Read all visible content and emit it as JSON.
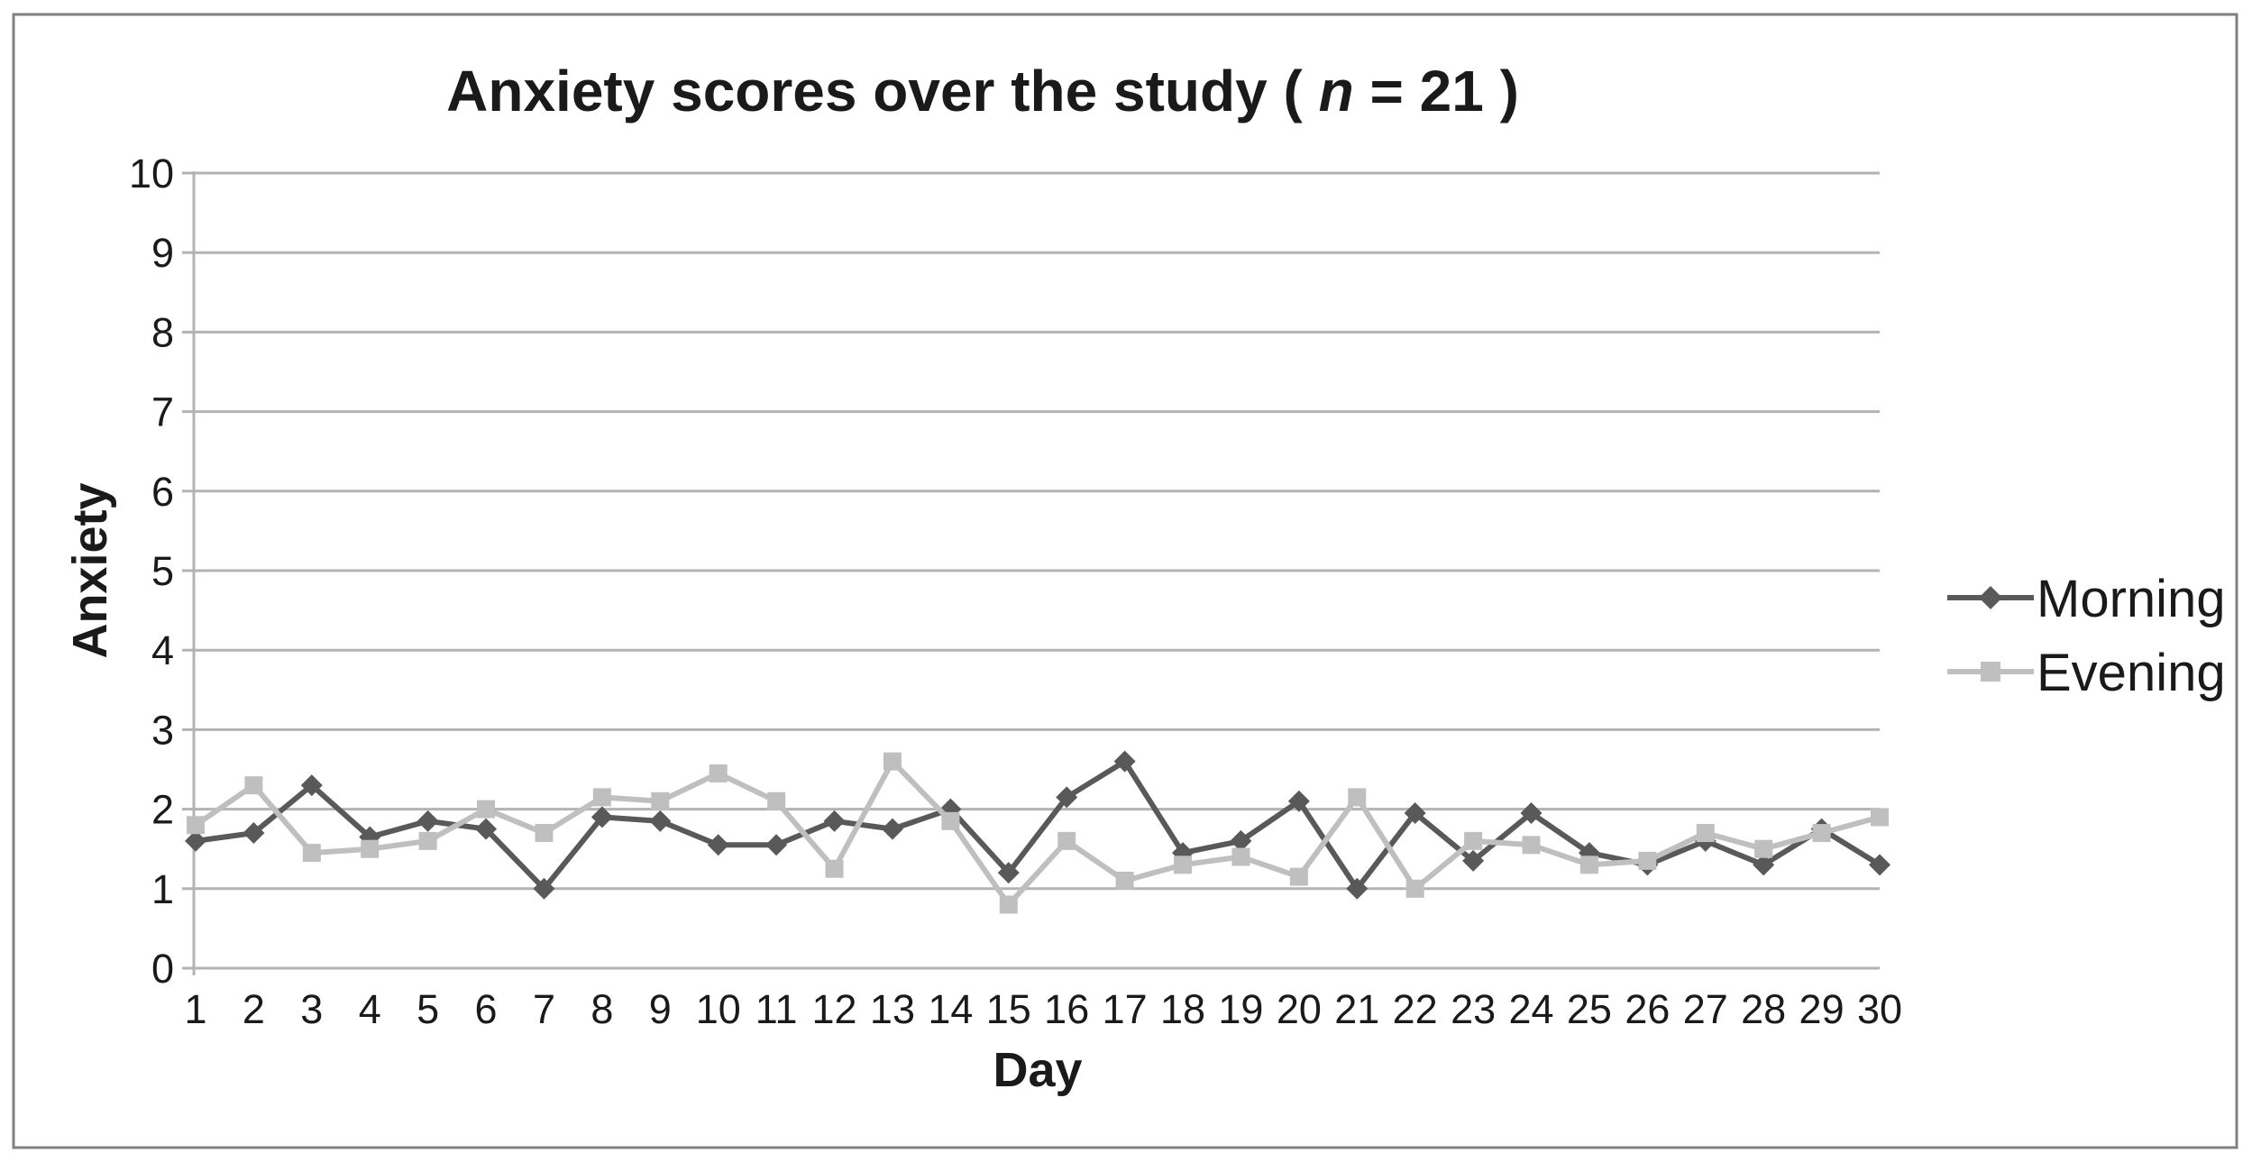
{
  "title": {
    "prefix": "Anxiety scores over the study ( ",
    "italic": "n",
    "suffix": " = 21 )"
  },
  "chart_data": {
    "type": "line",
    "categories": [
      "1",
      "2",
      "3",
      "4",
      "5",
      "6",
      "7",
      "8",
      "9",
      "10",
      "11",
      "12",
      "13",
      "14",
      "15",
      "16",
      "17",
      "18",
      "19",
      "20",
      "21",
      "22",
      "23",
      "24",
      "25",
      "26",
      "27",
      "28",
      "29",
      "30"
    ],
    "series": [
      {
        "name": "Morning",
        "color": "#595959",
        "marker": "diamond",
        "values": [
          1.6,
          1.7,
          2.3,
          1.65,
          1.85,
          1.75,
          1.0,
          1.9,
          1.85,
          1.55,
          1.55,
          1.85,
          1.75,
          2.0,
          1.2,
          2.15,
          2.6,
          1.45,
          1.6,
          2.1,
          1.0,
          1.95,
          1.35,
          1.95,
          1.45,
          1.3,
          1.6,
          1.3,
          1.75,
          1.3
        ]
      },
      {
        "name": "Evening",
        "color": "#bfbfbf",
        "marker": "square",
        "values": [
          1.8,
          2.3,
          1.45,
          1.5,
          1.6,
          2.0,
          1.7,
          2.15,
          2.1,
          2.45,
          2.1,
          1.25,
          2.6,
          1.85,
          0.8,
          1.6,
          1.1,
          1.3,
          1.4,
          1.15,
          2.15,
          1.0,
          1.6,
          1.55,
          1.3,
          1.35,
          1.7,
          1.5,
          1.7,
          1.9
        ]
      }
    ],
    "xlabel": "Day",
    "ylabel": "Anxiety",
    "ylim": [
      0,
      10
    ],
    "y_ticks": [
      0,
      1,
      2,
      3,
      4,
      5,
      6,
      7,
      8,
      9,
      10
    ],
    "grid": true,
    "legend_position": "right"
  },
  "colors": {
    "gridline": "#b3b3b3",
    "axis": "#b3b3b3",
    "border": "#808080",
    "text": "#1a1a1a",
    "background": "#ffffff"
  }
}
